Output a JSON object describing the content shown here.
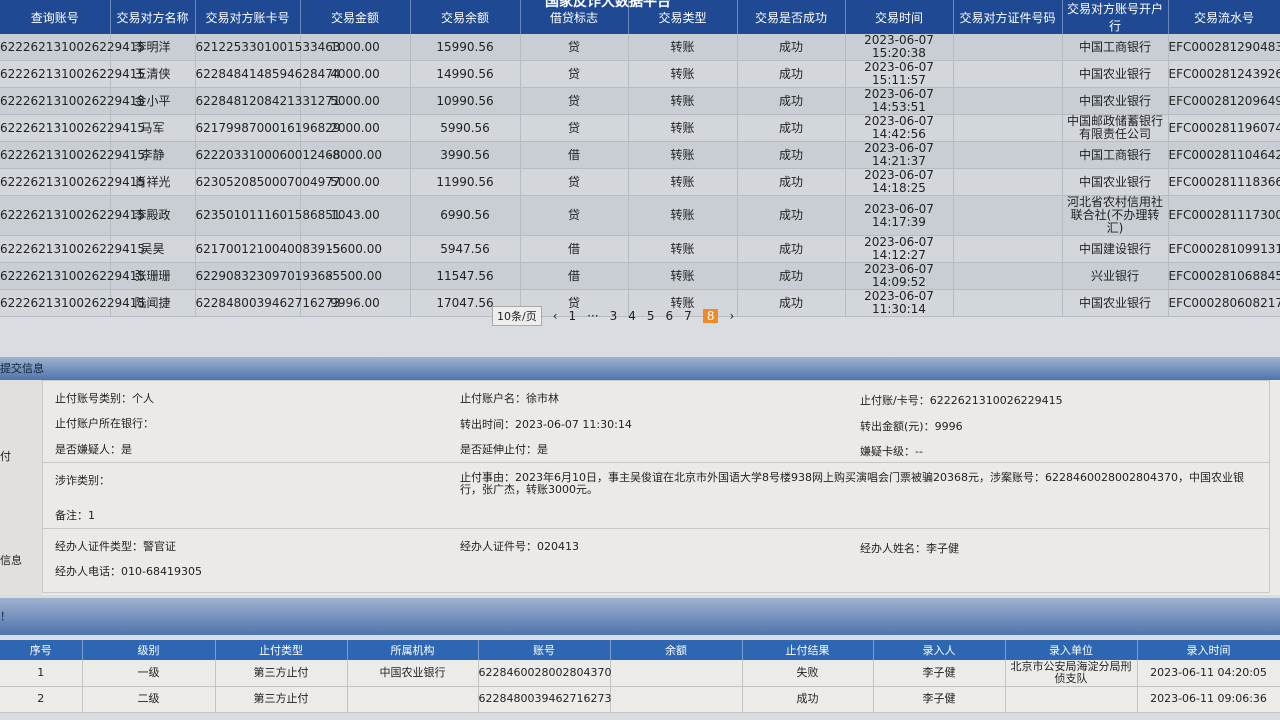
{
  "app_title": "国家反诈大数据平台",
  "transactions": {
    "headers": [
      "查询账号",
      "交易对方名称",
      "交易对方账卡号",
      "交易金额",
      "交易余额",
      "借贷标志",
      "交易类型",
      "交易是否成功",
      "交易时间",
      "交易对方证件号码",
      "交易对方账号开户行",
      "交易流水号"
    ],
    "rows": [
      [
        "6222621310026229415",
        "李明洋",
        "6212253301001533463",
        "1000.00",
        "15990.56",
        "贷",
        "转账",
        "成功",
        "2023-06-07 15:20:38",
        "",
        "中国工商银行",
        "EFC0002812904830"
      ],
      [
        "6222621310026229415",
        "王清侠",
        "6228484148594628474",
        "4000.00",
        "14990.56",
        "贷",
        "转账",
        "成功",
        "2023-06-07 15:11:57",
        "",
        "中国农业银行",
        "EFC0002812439267"
      ],
      [
        "6222621310026229415",
        "金小平",
        "6228481208421331271",
        "5000.00",
        "10990.56",
        "贷",
        "转账",
        "成功",
        "2023-06-07 14:53:51",
        "",
        "中国农业银行",
        "EFC0002812096493"
      ],
      [
        "6222621310026229415",
        "马军",
        "6217998700016196829",
        "2000.00",
        "5990.56",
        "贷",
        "转账",
        "成功",
        "2023-06-07 14:42:56",
        "",
        "中国邮政储蓄银行有限责任公司",
        "EFC0002811960740"
      ],
      [
        "6222621310026229415",
        "李静",
        "6222033100060012468",
        "-8000.00",
        "3990.56",
        "借",
        "转账",
        "成功",
        "2023-06-07 14:21:37",
        "",
        "中国工商银行",
        "EFC0002811046424"
      ],
      [
        "6222621310026229415",
        "肖祥光",
        "6230520850007004977",
        "5000.00",
        "11990.56",
        "贷",
        "转账",
        "成功",
        "2023-06-07 14:18:25",
        "",
        "中国农业银行",
        "EFC0002811183668"
      ],
      [
        "6222621310026229415",
        "李殿政",
        "6235010111601586851",
        "1043.00",
        "6990.56",
        "贷",
        "转账",
        "成功",
        "2023-06-07 14:17:39",
        "",
        "河北省农村信用社联合社(不办理转汇)",
        "EFC0002811173005"
      ],
      [
        "6222621310026229415",
        "吴昊",
        "6217001210040083915",
        "-5600.00",
        "5947.56",
        "借",
        "转账",
        "成功",
        "2023-06-07 14:12:27",
        "",
        "中国建设银行",
        "EFC0002810991311"
      ],
      [
        "6222621310026229415",
        "张珊珊",
        "622908323097019368",
        "-5500.00",
        "11547.56",
        "借",
        "转账",
        "成功",
        "2023-06-07 14:09:52",
        "",
        "兴业银行",
        "EFC0002810688456"
      ],
      [
        "6222621310026229415",
        "陆闻捷",
        "6228480039462716273",
        "9996.00",
        "17047.56",
        "贷",
        "转账",
        "成功",
        "2023-06-07 11:30:14",
        "",
        "中国农业银行",
        "EFC0002806082179"
      ]
    ]
  },
  "pager": {
    "page_size": "10条/页",
    "prev": "‹",
    "next": "›",
    "first": "1",
    "ellipsis": "···",
    "pages": [
      "3",
      "4",
      "5",
      "6",
      "7",
      "8"
    ],
    "current": "8"
  },
  "submit_info": {
    "title": "提交信息",
    "side_label_1": "付",
    "side_label_2": "信息",
    "account_type": "止付账号类别：个人",
    "account_name": "止付账户名：徐市林",
    "account_no": "止付账/卡号：6222621310026229415",
    "bank": "止付账户所在银行：",
    "transfer_time": "转出时间：2023-06-07 11:30:14",
    "transfer_amount": "转出金额(元)：9996",
    "is_suspect": "是否嫌疑人：是",
    "extend_stop": "是否延伸止付：是",
    "suspect_level": "嫌疑卡级：--",
    "fraud_type": "涉诈类别：",
    "reason": "止付事由：2023年6月10日，事主吴俊谊在北京市外国语大学8号楼938网上购买演唱会门票被骗20368元，涉案账号：6228460028002804370，中国农业银行，张广杰，转账3000元。",
    "remark": "备注：1",
    "officer_id_type": "经办人证件类型：警官证",
    "officer_id_no": "经办人证件号：020413",
    "officer_name": "经办人姓名：李子健",
    "officer_phone": "经办人电话：010-68419305"
  },
  "stop_section": {
    "title": "！"
  },
  "stops": {
    "headers": [
      "序号",
      "级别",
      "止付类型",
      "所属机构",
      "账号",
      "余额",
      "止付结果",
      "录入人",
      "录入单位",
      "录入时间"
    ],
    "rows": [
      [
        "1",
        "一级",
        "第三方止付",
        "中国农业银行",
        "6228460028002804370",
        "",
        "失败",
        "李子健",
        "北京市公安局海淀分局刑侦支队",
        "2023-06-11 04:20:05"
      ],
      [
        "2",
        "二级",
        "第三方止付",
        "",
        "6228480039462716273",
        "",
        "成功",
        "李子健",
        "",
        "2023-06-11 09:06:36"
      ]
    ]
  },
  "colors": {
    "header_blue": "#1f4a93",
    "current_page": "#f08a24"
  }
}
